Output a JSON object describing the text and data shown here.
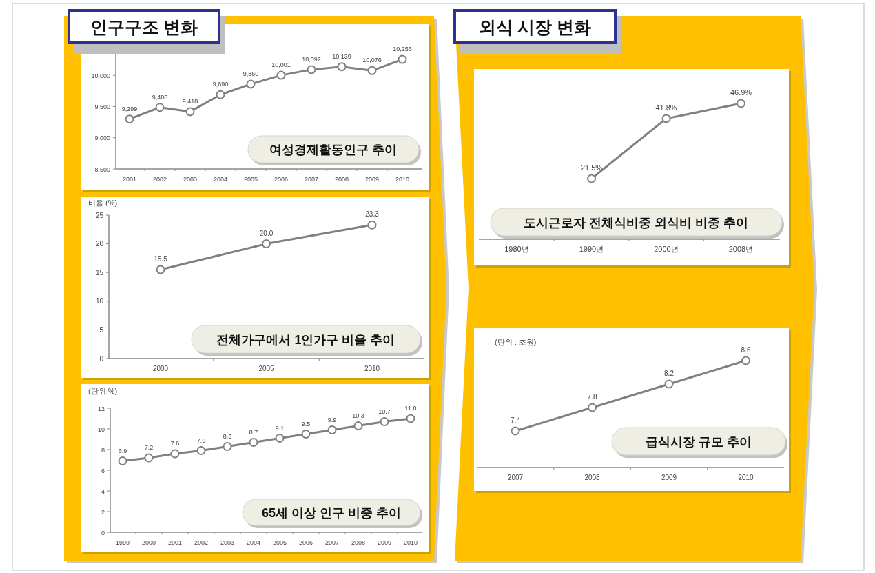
{
  "chart_data": [
    {
      "type": "line",
      "title": "여성경제활동인구 추이",
      "annotations": [
        "인구구조 변화"
      ],
      "categories": [
        "2001",
        "2002",
        "2003",
        "2004",
        "2005",
        "2006",
        "2007",
        "2008",
        "2009",
        "2010"
      ],
      "values": [
        9299,
        9486,
        9418,
        9690,
        9860,
        10001,
        10092,
        10139,
        10076,
        10256
      ],
      "value_labels": [
        "9,299",
        "9,486",
        "9,418",
        "9,690",
        "9,860",
        "10,001",
        "10,092",
        "10,139",
        "10,076",
        "10,256"
      ],
      "color": "#808080",
      "marker": "circle",
      "ylim": [
        8500,
        10400
      ],
      "yticks": [
        {
          "value": 8500,
          "label": "8,500"
        },
        {
          "value": 9000,
          "label": "9,000"
        },
        {
          "value": 9500,
          "label": "9,500"
        },
        {
          "value": 10000,
          "label": "10,000"
        }
      ]
    },
    {
      "type": "line",
      "title": "전체가구에서 1인가구 비율 추이",
      "ylabel": "비율 (%)",
      "categories": [
        "2000",
        "2005",
        "2010"
      ],
      "values": [
        15.5,
        20.0,
        23.3
      ],
      "value_labels": [
        "15.5",
        "20.0",
        "23.3"
      ],
      "color": "#808080",
      "marker": "circle",
      "ylim": [
        0,
        25
      ],
      "yticks": [
        0,
        5,
        10,
        15,
        20,
        25
      ]
    },
    {
      "type": "line",
      "title": "65세 이상 인구 비중 추이",
      "ylabel": "(단위:%)",
      "categories": [
        "1999",
        "2000",
        "2001",
        "2002",
        "2003",
        "2004",
        "2005",
        "2006",
        "2007",
        "2008",
        "2009",
        "2010"
      ],
      "values": [
        6.9,
        7.2,
        7.6,
        7.9,
        8.3,
        8.7,
        9.1,
        9.5,
        9.9,
        10.3,
        10.7,
        11.0
      ],
      "value_labels": [
        "6.9",
        "7.2",
        "7.6",
        "7.9",
        "8.3",
        "8.7",
        "9.1",
        "9.5",
        "9.9",
        "10.3",
        "10.7",
        "11.0"
      ],
      "color": "#808080",
      "marker": "circle",
      "ylim": [
        0,
        12
      ],
      "yticks": [
        0,
        2,
        4,
        6,
        8,
        10,
        12
      ]
    },
    {
      "type": "line",
      "title": "도시근로자 전체식비중 외식비 비중 추이",
      "annotations": [
        "외식 시장 변화"
      ],
      "categories": [
        "1980년",
        "1990년",
        "2000년",
        "2008년"
      ],
      "values": [
        null,
        21.5,
        41.8,
        46.9
      ],
      "value_labels": [
        null,
        "21.5%",
        "41.8%",
        "46.9%"
      ],
      "color": "#808080",
      "marker": "circle",
      "tick_labels": "x"
    },
    {
      "type": "line",
      "title": "급식시장 규모 추이",
      "ylabel": "(단위 : 조원)",
      "categories": [
        "2007",
        "2008",
        "2009",
        "2010"
      ],
      "values": [
        7.4,
        7.8,
        8.2,
        8.6
      ],
      "value_labels": [
        "7.4",
        "7.8",
        "8.2",
        "8.6"
      ],
      "color": "#808080",
      "marker": "circle",
      "tick_labels": "x"
    }
  ]
}
